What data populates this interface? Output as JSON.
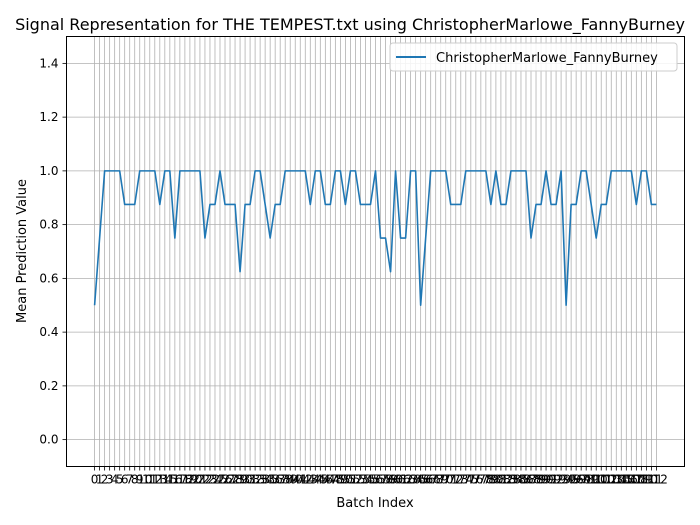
{
  "chart_data": {
    "type": "line",
    "title": "Signal Representation for THE TEMPEST.txt using ChristopherMarlowe_FannyBurney",
    "xlabel": "Batch Index",
    "ylabel": "Mean Prediction Value",
    "ylim": [
      -0.1,
      1.5
    ],
    "xlim": [
      -5.6,
      117.6
    ],
    "yticks": [
      0.0,
      0.2,
      0.4,
      0.6,
      0.8,
      1.0,
      1.2,
      1.4
    ],
    "ytick_labels": [
      "0.0",
      "0.2",
      "0.4",
      "0.6",
      "0.8",
      "1.0",
      "1.2",
      "1.4"
    ],
    "xtick_labels": [
      "0",
      "1",
      "2",
      "3",
      "4",
      "5",
      "6",
      "7",
      "8",
      "9",
      "10",
      "11",
      "12",
      "13",
      "14",
      "15",
      "16",
      "17",
      "18",
      "19",
      "20",
      "21",
      "22",
      "23",
      "24",
      "25",
      "26",
      "27",
      "28",
      "29",
      "30",
      "31",
      "32",
      "33",
      "34",
      "35",
      "36",
      "37",
      "38",
      "39",
      "40",
      "41",
      "42",
      "43",
      "44",
      "45",
      "46",
      "47",
      "48",
      "49",
      "50",
      "51",
      "52",
      "53",
      "54",
      "55",
      "56",
      "57",
      "58",
      "59",
      "60",
      "61",
      "62",
      "63",
      "64",
      "65",
      "66",
      "67",
      "68",
      "69",
      "70",
      "71",
      "72",
      "73",
      "74",
      "75",
      "76",
      "77",
      "78",
      "79",
      "80",
      "81",
      "82",
      "83",
      "84",
      "85",
      "86",
      "87",
      "88",
      "89",
      "90",
      "91",
      "92",
      "93",
      "94",
      "95",
      "96",
      "97",
      "98",
      "99",
      "100",
      "101",
      "102",
      "103",
      "104",
      "105",
      "106",
      "107",
      "108",
      "109",
      "110",
      "111",
      "112"
    ],
    "grid": true,
    "legend_position": "upper right",
    "series": [
      {
        "name": "ChristopherMarlowe_FannyBurney",
        "color": "#1f77b4",
        "values": [
          0.5,
          0.75,
          1.0,
          1.0,
          1.0,
          1.0,
          0.875,
          0.875,
          0.875,
          1.0,
          1.0,
          1.0,
          1.0,
          0.875,
          1.0,
          1.0,
          0.75,
          1.0,
          1.0,
          1.0,
          1.0,
          1.0,
          0.75,
          0.875,
          0.875,
          1.0,
          0.875,
          0.875,
          0.875,
          0.625,
          0.875,
          0.875,
          1.0,
          1.0,
          0.875,
          0.75,
          0.875,
          0.875,
          1.0,
          1.0,
          1.0,
          1.0,
          1.0,
          0.875,
          1.0,
          1.0,
          0.875,
          0.875,
          1.0,
          1.0,
          0.875,
          1.0,
          1.0,
          0.875,
          0.875,
          0.875,
          1.0,
          0.75,
          0.75,
          0.625,
          1.0,
          0.75,
          0.75,
          1.0,
          1.0,
          0.5,
          0.75,
          1.0,
          1.0,
          1.0,
          1.0,
          0.875,
          0.875,
          0.875,
          1.0,
          1.0,
          1.0,
          1.0,
          1.0,
          0.875,
          1.0,
          0.875,
          0.875,
          1.0,
          1.0,
          1.0,
          1.0,
          0.75,
          0.875,
          0.875,
          1.0,
          0.875,
          0.875,
          1.0,
          0.5,
          0.875,
          0.875,
          1.0,
          1.0,
          0.875,
          0.75,
          0.875,
          0.875,
          1.0,
          1.0,
          1.0,
          1.0,
          1.0,
          0.875,
          1.0,
          1.0,
          0.875,
          0.875
        ]
      }
    ]
  }
}
